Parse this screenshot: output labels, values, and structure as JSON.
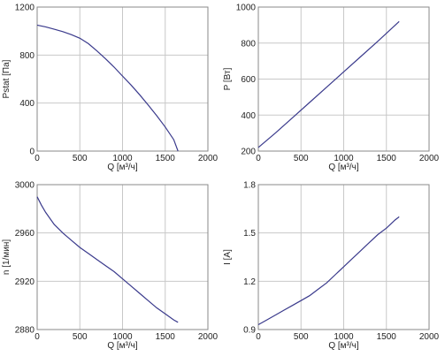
{
  "colors": {
    "line": "#3a3a8c",
    "grid": "#c8c8c8",
    "frame": "#8a8a8a"
  },
  "chart_data": [
    {
      "type": "line",
      "xlabel": "Q [м³/ч]",
      "ylabel": "Pstat [Па]",
      "xlim": [
        0,
        2000
      ],
      "ylim": [
        0,
        1200
      ],
      "xticks": [
        "0",
        "500",
        "1000",
        "1500",
        "2000"
      ],
      "yticks": [
        "0",
        "400",
        "800",
        "1200"
      ],
      "grid": true,
      "series": [
        {
          "x": [
            0,
            100,
            200,
            300,
            400,
            500,
            600,
            700,
            800,
            900,
            1000,
            1100,
            1200,
            1300,
            1400,
            1500,
            1600,
            1650
          ],
          "y": [
            1050,
            1035,
            1015,
            995,
            970,
            940,
            895,
            835,
            770,
            700,
            625,
            550,
            470,
            385,
            295,
            200,
            95,
            0
          ]
        }
      ]
    },
    {
      "type": "line",
      "xlabel": "Q [м³/ч]",
      "ylabel": "P [Вт]",
      "xlim": [
        0,
        2000
      ],
      "ylim": [
        200,
        1000
      ],
      "xticks": [
        "0",
        "500",
        "1000",
        "1500",
        "2000"
      ],
      "yticks": [
        "200",
        "400",
        "600",
        "800",
        "1000"
      ],
      "grid": true,
      "series": [
        {
          "x": [
            0,
            200,
            400,
            600,
            800,
            1000,
            1200,
            1400,
            1650
          ],
          "y": [
            220,
            300,
            385,
            470,
            555,
            640,
            725,
            810,
            920
          ]
        }
      ]
    },
    {
      "type": "line",
      "xlabel": "Q [м³/ч]",
      "ylabel": "n [1/мин]",
      "xlim": [
        0,
        2000
      ],
      "ylim": [
        2880,
        3000
      ],
      "xticks": [
        "0",
        "500",
        "1000",
        "1500",
        "2000"
      ],
      "yticks": [
        "2880",
        "2920",
        "2960",
        "3000"
      ],
      "grid": true,
      "series": [
        {
          "x": [
            0,
            50,
            100,
            200,
            300,
            400,
            500,
            600,
            700,
            800,
            900,
            1000,
            1100,
            1200,
            1300,
            1400,
            1500,
            1600,
            1650
          ],
          "y": [
            2990,
            2983,
            2977,
            2967,
            2960,
            2954,
            2948,
            2943,
            2938,
            2933,
            2928,
            2922,
            2916,
            2910,
            2904,
            2898,
            2893,
            2888,
            2886
          ]
        }
      ]
    },
    {
      "type": "line",
      "xlabel": "Q [м³/ч]",
      "ylabel": "I [A]",
      "xlim": [
        0,
        2000
      ],
      "ylim": [
        0.9,
        1.8
      ],
      "xticks": [
        "0",
        "500",
        "1000",
        "1500",
        "2000"
      ],
      "yticks": [
        "0.9",
        "1.2",
        "1.5",
        "1.8"
      ],
      "grid": true,
      "series": [
        {
          "x": [
            0,
            100,
            200,
            300,
            400,
            500,
            600,
            700,
            800,
            900,
            1000,
            1100,
            1200,
            1300,
            1400,
            1500,
            1600,
            1650
          ],
          "y": [
            0.93,
            0.96,
            0.99,
            1.02,
            1.05,
            1.08,
            1.11,
            1.15,
            1.19,
            1.24,
            1.29,
            1.34,
            1.39,
            1.44,
            1.49,
            1.53,
            1.58,
            1.6
          ]
        }
      ]
    }
  ]
}
